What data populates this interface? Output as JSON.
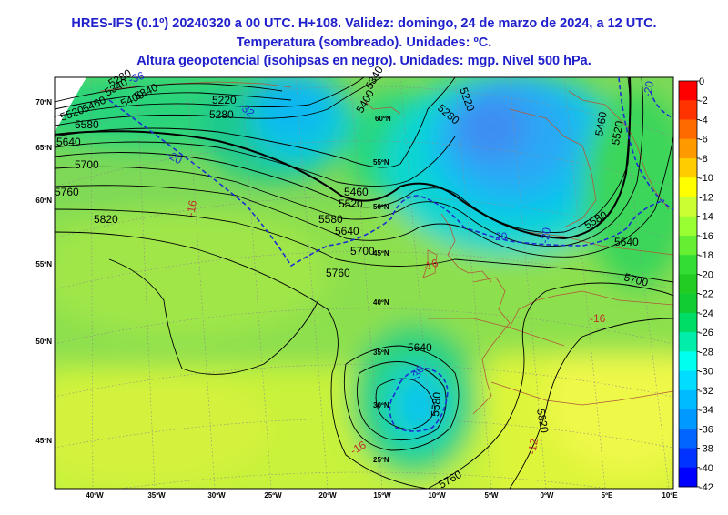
{
  "title": {
    "line1": "HRES-IFS (0.1º) 20240320 a 00 UTC. H+108. Validez: domingo, 24 de marzo de 2024, a 12 UTC.",
    "line2": "Temperatura (sombreado). Unidades: ºC.",
    "line3": "Altura geopotencial (isohipsas en negro). Unidades: mgp. Nivel 500 hPa."
  },
  "colorbar": {
    "labels": [
      "0",
      "-2",
      "-4",
      "-6",
      "-8",
      "-10",
      "-12",
      "-14",
      "-16",
      "-18",
      "-20",
      "-22",
      "-24",
      "-26",
      "-28",
      "-30",
      "-32",
      "-34",
      "-36",
      "-38",
      "-40",
      "-42"
    ],
    "colors": [
      "#ff0000",
      "#ff3300",
      "#ff6a00",
      "#ff9900",
      "#ffcc00",
      "#ffff00",
      "#ccff33",
      "#99ff33",
      "#66ee33",
      "#33dd33",
      "#22cc22",
      "#11cc33",
      "#00dd66",
      "#00eeaa",
      "#00ffee",
      "#00ddff",
      "#00bbff",
      "#0099ff",
      "#0066ff",
      "#0033ff",
      "#0000ff"
    ]
  },
  "lat_labels": [
    "70ºN",
    "65ºN",
    "60ºN",
    "55ºN",
    "50ºN",
    "45ºN"
  ],
  "lon_labels": [
    "40ºW",
    "35ºW",
    "30ºW",
    "25ºW",
    "20ºW",
    "15ºW",
    "10ºW",
    "5ºW",
    "0ºW",
    "5ºE",
    "10ºE"
  ],
  "grid_labels": [
    "60ºN",
    "55ºN",
    "50ºN",
    "45ºN",
    "40ºN",
    "35ºN",
    "30ºN",
    "25ºN"
  ],
  "isohypse_labels": [
    "5220",
    "5280",
    "5340",
    "5400",
    "5220",
    "5280",
    "5340",
    "5460",
    "5520",
    "5580",
    "5640",
    "5700",
    "5760",
    "5820",
    "5460",
    "5520",
    "5580",
    "5640",
    "5700",
    "5760",
    "5580",
    "5640",
    "5700",
    "5640",
    "5580",
    "5760",
    "5820",
    "5520",
    "5460",
    "5400",
    "5340",
    "5280"
  ],
  "temp_labels": [
    "-36",
    "-20",
    "-16",
    "-16",
    "-16",
    "-20",
    "-20",
    "-32",
    "-30",
    "-16",
    "-12",
    "-20"
  ]
}
